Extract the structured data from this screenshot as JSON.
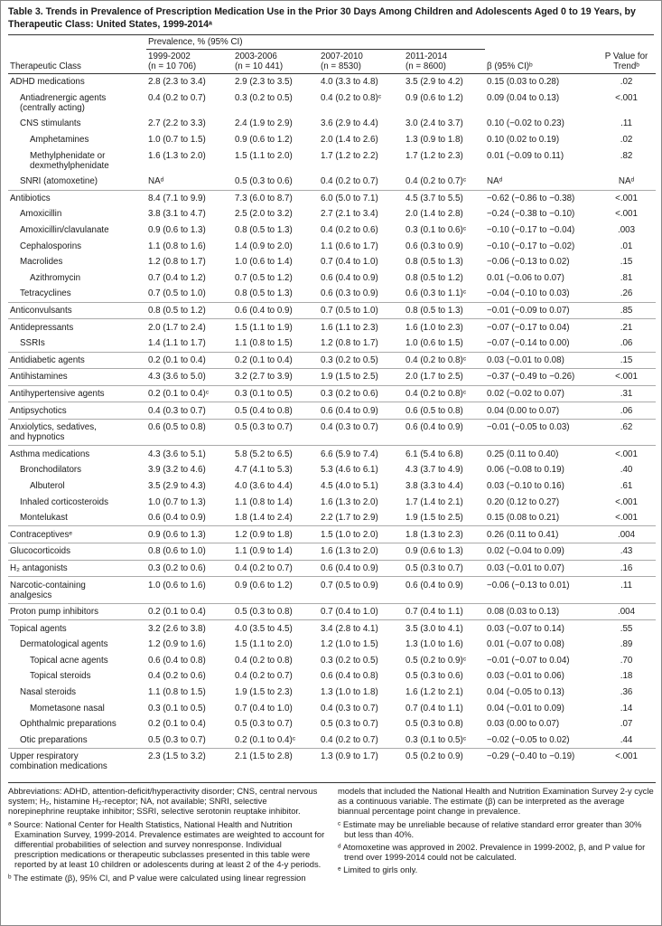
{
  "title": "Table 3. Trends in Prevalence of Prescription Medication Use in the Prior 30 Days Among Children and Adolescents Aged 0 to 19 Years, by Therapeutic Class: United States, 1999-2014ᵃ",
  "header": {
    "class": "Therapeutic Class",
    "prevalence": "Prevalence, % (95% CI)",
    "periods": [
      {
        "period": "1999-2002",
        "n": "(n = 10 706)"
      },
      {
        "period": "2003-2006",
        "n": "(n = 10 441)"
      },
      {
        "period": "2007-2010",
        "n": "(n = 8530)"
      },
      {
        "period": "2011-2014",
        "n": "(n = 8600)"
      }
    ],
    "beta": "β (95% CI)ᵇ",
    "p": "P Value for Trendᵇ"
  },
  "rows": [
    [
      "ADHD medications",
      0,
      "2.8 (2.3 to 3.4)",
      "2.9 (2.3 to 3.5)",
      "4.0 (3.3 to 4.8)",
      "3.5 (2.9 to 4.2)",
      "0.15 (0.03 to 0.28)",
      ".02"
    ],
    [
      "Antiadrenergic agents (centrally acting)",
      1,
      "0.4 (0.2 to 0.7)",
      "0.3 (0.2 to 0.5)",
      "0.4 (0.2 to 0.8)ᶜ",
      "0.9 (0.6 to 1.2)",
      "0.09 (0.04 to 0.13)",
      "<.001"
    ],
    [
      "CNS stimulants",
      1,
      "2.7 (2.2 to 3.3)",
      "2.4 (1.9 to 2.9)",
      "3.6 (2.9 to 4.4)",
      "3.0 (2.4 to 3.7)",
      "0.10 (−0.02 to 0.23)",
      ".11"
    ],
    [
      "Amphetamines",
      2,
      "1.0 (0.7 to 1.5)",
      "0.9 (0.6 to 1.2)",
      "2.0 (1.4 to 2.6)",
      "1.3 (0.9 to 1.8)",
      "0.10 (0.02 to 0.19)",
      ".02"
    ],
    [
      "Methylphenidate or dexmethylphenidate",
      2,
      "1.6 (1.3 to 2.0)",
      "1.5 (1.1 to 2.0)",
      "1.7 (1.2 to 2.2)",
      "1.7 (1.2 to 2.3)",
      "0.01 (−0.09 to 0.11)",
      ".82"
    ],
    [
      "SNRI (atomoxetine)",
      1,
      "NAᵈ",
      "0.5 (0.3 to 0.6)",
      "0.4 (0.2 to 0.7)",
      "0.4 (0.2 to 0.7)ᶜ",
      "NAᵈ",
      "NAᵈ"
    ],
    [
      "Antibiotics",
      0,
      "8.4 (7.1 to 9.9)",
      "7.3 (6.0 to 8.7)",
      "6.0 (5.0 to 7.1)",
      "4.5 (3.7 to 5.5)",
      "−0.62 (−0.86 to −0.38)",
      "<.001"
    ],
    [
      "Amoxicillin",
      1,
      "3.8 (3.1 to 4.7)",
      "2.5 (2.0 to 3.2)",
      "2.7 (2.1 to 3.4)",
      "2.0 (1.4 to 2.8)",
      "−0.24 (−0.38 to −0.10)",
      "<.001"
    ],
    [
      "Amoxicillin/clavulanate",
      1,
      "0.9 (0.6 to 1.3)",
      "0.8 (0.5 to 1.3)",
      "0.4 (0.2 to 0.6)",
      "0.3 (0.1 to 0.6)ᶜ",
      "−0.10 (−0.17 to −0.04)",
      ".003"
    ],
    [
      "Cephalosporins",
      1,
      "1.1 (0.8 to 1.6)",
      "1.4 (0.9 to 2.0)",
      "1.1 (0.6 to 1.7)",
      "0.6 (0.3 to 0.9)",
      "−0.10 (−0.17 to −0.02)",
      ".01"
    ],
    [
      "Macrolides",
      1,
      "1.2 (0.8 to 1.7)",
      "1.0 (0.6 to 1.4)",
      "0.7 (0.4 to 1.0)",
      "0.8 (0.5 to 1.3)",
      "−0.06 (−0.13 to 0.02)",
      ".15"
    ],
    [
      "Azithromycin",
      2,
      "0.7 (0.4 to 1.2)",
      "0.7 (0.5 to 1.2)",
      "0.6 (0.4 to 0.9)",
      "0.8 (0.5 to 1.2)",
      "0.01 (−0.06 to 0.07)",
      ".81"
    ],
    [
      "Tetracyclines",
      1,
      "0.7 (0.5 to 1.0)",
      "0.8 (0.5 to 1.3)",
      "0.6 (0.3 to 0.9)",
      "0.6 (0.3 to 1.1)ᶜ",
      "−0.04 (−0.10 to 0.03)",
      ".26"
    ],
    [
      "Anticonvulsants",
      0,
      "0.8 (0.5 to 1.2)",
      "0.6 (0.4 to 0.9)",
      "0.7 (0.5 to 1.0)",
      "0.8 (0.5 to 1.3)",
      "−0.01 (−0.09 to 0.07)",
      ".85"
    ],
    [
      "Antidepressants",
      0,
      "2.0 (1.7 to 2.4)",
      "1.5 (1.1 to 1.9)",
      "1.6 (1.1 to 2.3)",
      "1.6 (1.0 to 2.3)",
      "−0.07 (−0.17 to 0.04)",
      ".21"
    ],
    [
      "SSRIs",
      1,
      "1.4 (1.1 to 1.7)",
      "1.1 (0.8 to 1.5)",
      "1.2 (0.8 to 1.7)",
      "1.0 (0.6 to 1.5)",
      "−0.07 (−0.14 to 0.00)",
      ".06"
    ],
    [
      "Antidiabetic agents",
      0,
      "0.2 (0.1 to 0.4)",
      "0.2 (0.1 to 0.4)",
      "0.3 (0.2 to 0.5)",
      "0.4 (0.2 to 0.8)ᶜ",
      "0.03 (−0.01 to 0.08)",
      ".15"
    ],
    [
      "Antihistamines",
      0,
      "4.3 (3.6 to 5.0)",
      "3.2 (2.7 to 3.9)",
      "1.9 (1.5 to 2.5)",
      "2.0 (1.7 to 2.5)",
      "−0.37 (−0.49 to −0.26)",
      "<.001"
    ],
    [
      "Antihypertensive agents",
      0,
      "0.2 (0.1 to 0.4)ᶜ",
      "0.3 (0.1 to 0.5)",
      "0.3 (0.2 to 0.6)",
      "0.4 (0.2 to 0.8)ᶜ",
      "0.02 (−0.02 to 0.07)",
      ".31"
    ],
    [
      "Antipsychotics",
      0,
      "0.4 (0.3 to 0.7)",
      "0.5 (0.4 to 0.8)",
      "0.6 (0.4 to 0.9)",
      "0.6 (0.5 to 0.8)",
      "0.04 (0.00 to 0.07)",
      ".06"
    ],
    [
      "Anxiolytics, sedatives, and hypnotics",
      0,
      "0.6 (0.5 to 0.8)",
      "0.5 (0.3 to 0.7)",
      "0.4 (0.3 to 0.7)",
      "0.6 (0.4 to 0.9)",
      "−0.01 (−0.05 to 0.03)",
      ".62"
    ],
    [
      "Asthma medications",
      0,
      "4.3 (3.6 to 5.1)",
      "5.8 (5.2 to 6.5)",
      "6.6 (5.9 to 7.4)",
      "6.1 (5.4 to 6.8)",
      "0.25 (0.11 to 0.40)",
      "<.001"
    ],
    [
      "Bronchodilators",
      1,
      "3.9 (3.2 to 4.6)",
      "4.7 (4.1 to 5.3)",
      "5.3 (4.6 to 6.1)",
      "4.3 (3.7 to 4.9)",
      "0.06 (−0.08 to 0.19)",
      ".40"
    ],
    [
      "Albuterol",
      2,
      "3.5 (2.9 to 4.3)",
      "4.0 (3.6 to 4.4)",
      "4.5 (4.0 to 5.1)",
      "3.8 (3.3 to 4.4)",
      "0.03 (−0.10 to 0.16)",
      ".61"
    ],
    [
      "Inhaled corticosteroids",
      1,
      "1.0 (0.7 to 1.3)",
      "1.1 (0.8 to 1.4)",
      "1.6 (1.3 to 2.0)",
      "1.7 (1.4 to 2.1)",
      "0.20 (0.12 to 0.27)",
      "<.001"
    ],
    [
      "Montelukast",
      1,
      "0.6 (0.4 to 0.9)",
      "1.8 (1.4 to 2.4)",
      "2.2 (1.7 to 2.9)",
      "1.9 (1.5 to 2.5)",
      "0.15 (0.08 to 0.21)",
      "<.001"
    ],
    [
      "Contraceptivesᵉ",
      0,
      "0.9 (0.6 to 1.3)",
      "1.2 (0.9 to 1.8)",
      "1.5 (1.0 to 2.0)",
      "1.8 (1.3 to 2.3)",
      "0.26 (0.11 to 0.41)",
      ".004"
    ],
    [
      "Glucocorticoids",
      0,
      "0.8 (0.6 to 1.0)",
      "1.1 (0.9 to 1.4)",
      "1.6 (1.3 to 2.0)",
      "0.9 (0.6 to 1.3)",
      "0.02 (−0.04 to 0.09)",
      ".43"
    ],
    [
      "H₂ antagonists",
      0,
      "0.3 (0.2 to 0.6)",
      "0.4 (0.2 to 0.7)",
      "0.6 (0.4 to 0.9)",
      "0.5 (0.3 to 0.7)",
      "0.03 (−0.01 to 0.07)",
      ".16"
    ],
    [
      "Narcotic-containing analgesics",
      0,
      "1.0 (0.6 to 1.6)",
      "0.9 (0.6 to 1.2)",
      "0.7 (0.5 to 0.9)",
      "0.6 (0.4 to 0.9)",
      "−0.06 (−0.13 to 0.01)",
      ".11"
    ],
    [
      "Proton pump inhibitors",
      0,
      "0.2 (0.1 to 0.4)",
      "0.5 (0.3 to 0.8)",
      "0.7 (0.4 to 1.0)",
      "0.7 (0.4 to 1.1)",
      "0.08 (0.03 to 0.13)",
      ".004"
    ],
    [
      "Topical agents",
      0,
      "3.2 (2.6 to 3.8)",
      "4.0 (3.5 to 4.5)",
      "3.4 (2.8 to 4.1)",
      "3.5 (3.0 to 4.1)",
      "0.03 (−0.07 to 0.14)",
      ".55"
    ],
    [
      "Dermatological agents",
      1,
      "1.2 (0.9 to 1.6)",
      "1.5 (1.1 to 2.0)",
      "1.2 (1.0 to 1.5)",
      "1.3 (1.0 to 1.6)",
      "0.01 (−0.07 to 0.08)",
      ".89"
    ],
    [
      "Topical acne agents",
      2,
      "0.6 (0.4 to 0.8)",
      "0.4 (0.2 to 0.8)",
      "0.3 (0.2 to 0.5)",
      "0.5 (0.2 to 0.9)ᶜ",
      "−0.01 (−0.07 to 0.04)",
      ".70"
    ],
    [
      "Topical steroids",
      2,
      "0.4 (0.2 to 0.6)",
      "0.4 (0.2 to 0.7)",
      "0.6 (0.4 to 0.8)",
      "0.5 (0.3 to 0.6)",
      "0.03 (−0.01 to 0.06)",
      ".18"
    ],
    [
      "Nasal steroids",
      1,
      "1.1 (0.8 to 1.5)",
      "1.9 (1.5 to 2.3)",
      "1.3 (1.0 to 1.8)",
      "1.6 (1.2 to 2.1)",
      "0.04 (−0.05 to 0.13)",
      ".36"
    ],
    [
      "Mometasone nasal",
      2,
      "0.3 (0.1 to 0.5)",
      "0.7 (0.4 to 1.0)",
      "0.4 (0.3 to 0.7)",
      "0.7 (0.4 to 1.1)",
      "0.04 (−0.01 to 0.09)",
      ".14"
    ],
    [
      "Ophthalmic preparations",
      1,
      "0.2 (0.1 to 0.4)",
      "0.5 (0.3 to 0.7)",
      "0.5 (0.3 to 0.7)",
      "0.5 (0.3 to 0.8)",
      "0.03 (0.00 to 0.07)",
      ".07"
    ],
    [
      "Otic preparations",
      1,
      "0.5 (0.3 to 0.7)",
      "0.2 (0.1 to 0.4)ᶜ",
      "0.4 (0.2 to 0.7)",
      "0.3 (0.1 to 0.5)ᶜ",
      "−0.02 (−0.05 to 0.02)",
      ".44"
    ],
    [
      "Upper respiratory combination medications",
      0,
      "2.3 (1.5 to 3.2)",
      "2.1 (1.5 to 2.8)",
      "1.3 (0.9 to 1.7)",
      "0.5 (0.2 to 0.9)",
      "−0.29 (−0.40 to −0.19)",
      "<.001"
    ]
  ],
  "footnotes": {
    "left": [
      "Abbreviations: ADHD, attention-deficit/hyperactivity disorder; CNS, central nervous system; H₂, histamine H₂-receptor; NA, not available; SNRI, selective norepinephrine reuptake inhibitor; SSRI, selective serotonin reuptake inhibitor.",
      "ᵃ Source: National Center for Health Statistics, National Health and Nutrition Examination Survey, 1999-2014. Prevalence estimates are weighted to account for differential probabilities of selection and survey nonresponse. Individual prescription medications or therapeutic subclasses presented in this table were reported by at least 10 children or adolescents during at least 2 of the 4-y periods.",
      "ᵇ The estimate (β), 95% CI, and P value were calculated using linear regression"
    ],
    "right": [
      "models that included the National Health and Nutrition Examination Survey 2-y cycle as a continuous variable. The estimate (β) can be interpreted as the average biannual percentage point change in prevalence.",
      "ᶜ Estimate may be unreliable because of relative standard error greater than 30% but less than 40%.",
      "ᵈ Atomoxetine was approved in 2002. Prevalence in 1999-2002, β, and P value for trend over 1999-2014 could not be calculated.",
      "ᵉ Limited to girls only."
    ]
  }
}
